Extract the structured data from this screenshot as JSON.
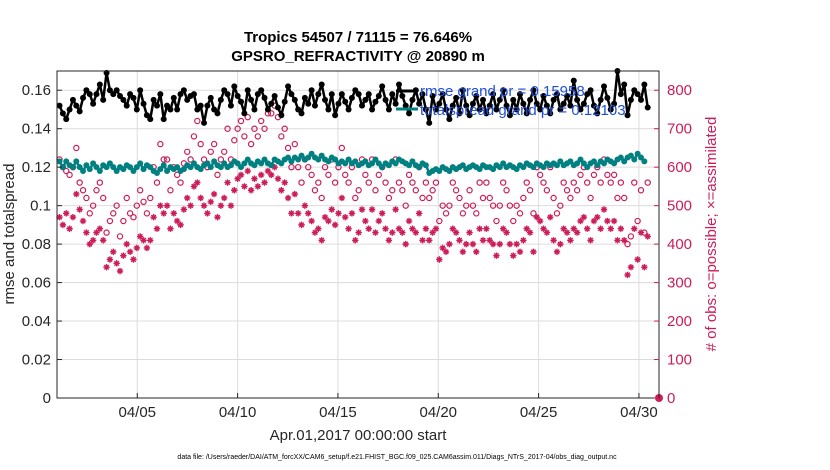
{
  "chart_data": {
    "type": "scatter",
    "title": "Tropics 54507 / 71115 = 76.646%",
    "subtitle": "GPSRO_REFRACTIVITY @ 20890 m",
    "xlabel": "Apr.01,2017 00:00:00 start",
    "ylabel_left": "rmse and totalspread",
    "ylabel_right": "# of obs: o=possible; ×=assimilated",
    "xlim": [
      1,
      31
    ],
    "ylim_left": [
      0,
      0.17
    ],
    "ylim_right": [
      0,
      850
    ],
    "x_ticks": [
      5,
      10,
      15,
      20,
      25,
      30
    ],
    "x_tick_labels": [
      "04/05",
      "04/10",
      "04/15",
      "04/20",
      "04/25",
      "04/30"
    ],
    "y_left_ticks": [
      0,
      0.02,
      0.04,
      0.06,
      0.08,
      0.1,
      0.12,
      0.14,
      0.16
    ],
    "y_left_tick_labels": [
      "0",
      "0.02",
      "0.04",
      "0.06",
      "0.08",
      "0.1",
      "0.12",
      "0.14",
      "0.16"
    ],
    "y_right_ticks": [
      0,
      100,
      200,
      300,
      400,
      500,
      600,
      700,
      800
    ],
    "y_right_tick_labels": [
      "0",
      "100",
      "200",
      "300",
      "400",
      "500",
      "600",
      "700",
      "800"
    ],
    "legend": [
      {
        "label": "rmse grand pr = 0.15958",
        "color": "#000000"
      },
      {
        "label": "totalspread grand pr = 0.12103",
        "color": "#008080"
      }
    ],
    "series": [
      {
        "name": "rmse",
        "axis": "left",
        "color": "#000000",
        "style": "line-marker",
        "values": [
          0.152,
          0.148,
          0.145,
          0.15,
          0.155,
          0.152,
          0.149,
          0.156,
          0.16,
          0.158,
          0.153,
          0.158,
          0.163,
          0.155,
          0.169,
          0.16,
          0.158,
          0.16,
          0.157,
          0.155,
          0.152,
          0.158,
          0.156,
          0.15,
          0.16,
          0.153,
          0.147,
          0.145,
          0.155,
          0.152,
          0.158,
          0.145,
          0.152,
          0.15,
          0.156,
          0.15,
          0.158,
          0.16,
          0.155,
          0.157,
          0.158,
          0.15,
          0.152,
          0.143,
          0.152,
          0.156,
          0.15,
          0.148,
          0.155,
          0.16,
          0.158,
          0.152,
          0.162,
          0.157,
          0.154,
          0.148,
          0.16,
          0.155,
          0.15,
          0.158,
          0.16,
          0.156,
          0.15,
          0.153,
          0.157,
          0.151,
          0.147,
          0.154,
          0.162,
          0.158,
          0.155,
          0.15,
          0.148,
          0.156,
          0.153,
          0.16,
          0.152,
          0.158,
          0.163,
          0.155,
          0.15,
          0.158,
          0.147,
          0.153,
          0.158,
          0.154,
          0.15,
          0.156,
          0.16,
          0.158,
          0.152,
          0.155,
          0.158,
          0.15,
          0.154,
          0.157,
          0.162,
          0.155,
          0.15,
          0.158,
          0.153,
          0.163,
          0.157,
          0.152,
          0.148,
          0.155,
          0.16,
          0.153,
          0.158,
          0.15,
          0.143,
          0.157,
          0.15,
          0.153,
          0.158,
          0.15,
          0.145,
          0.152,
          0.156,
          0.148,
          0.16,
          0.152,
          0.147,
          0.153,
          0.157,
          0.15,
          0.155,
          0.148,
          0.152,
          0.158,
          0.15,
          0.155,
          0.16,
          0.152,
          0.147,
          0.155,
          0.15,
          0.158,
          0.153,
          0.148,
          0.155,
          0.16,
          0.153,
          0.15,
          0.157,
          0.152,
          0.148,
          0.155,
          0.158,
          0.15,
          0.153,
          0.157,
          0.152,
          0.165,
          0.155,
          0.15,
          0.153,
          0.158,
          0.16,
          0.152,
          0.148,
          0.155,
          0.162,
          0.156,
          0.15,
          0.153,
          0.17,
          0.158,
          0.163,
          0.147,
          0.155,
          0.16,
          0.158,
          0.155,
          0.163,
          0.151
        ]
      },
      {
        "name": "totalspread",
        "axis": "left",
        "color": "#008080",
        "style": "line-marker",
        "values": [
          0.123,
          0.12,
          0.123,
          0.121,
          0.12,
          0.123,
          0.12,
          0.118,
          0.121,
          0.119,
          0.122,
          0.12,
          0.118,
          0.121,
          0.12,
          0.122,
          0.12,
          0.118,
          0.12,
          0.119,
          0.121,
          0.12,
          0.118,
          0.12,
          0.122,
          0.119,
          0.121,
          0.12,
          0.118,
          0.117,
          0.119,
          0.121,
          0.118,
          0.12,
          0.119,
          0.12,
          0.118,
          0.119,
          0.121,
          0.12,
          0.122,
          0.12,
          0.119,
          0.121,
          0.122,
          0.12,
          0.123,
          0.121,
          0.12,
          0.122,
          0.12,
          0.121,
          0.123,
          0.122,
          0.12,
          0.122,
          0.124,
          0.122,
          0.121,
          0.123,
          0.122,
          0.124,
          0.122,
          0.121,
          0.124,
          0.123,
          0.122,
          0.124,
          0.125,
          0.123,
          0.125,
          0.124,
          0.126,
          0.124,
          0.125,
          0.127,
          0.125,
          0.124,
          0.126,
          0.124,
          0.123,
          0.125,
          0.124,
          0.122,
          0.123,
          0.122,
          0.124,
          0.122,
          0.123,
          0.121,
          0.122,
          0.123,
          0.121,
          0.122,
          0.124,
          0.122,
          0.12,
          0.122,
          0.121,
          0.123,
          0.122,
          0.124,
          0.123,
          0.122,
          0.121,
          0.123,
          0.121,
          0.12,
          0.122,
          0.121,
          0.117,
          0.118,
          0.119,
          0.118,
          0.12,
          0.119,
          0.118,
          0.12,
          0.119,
          0.12,
          0.121,
          0.119,
          0.12,
          0.121,
          0.12,
          0.119,
          0.121,
          0.12,
          0.12,
          0.119,
          0.121,
          0.12,
          0.122,
          0.12,
          0.121,
          0.12,
          0.119,
          0.121,
          0.12,
          0.122,
          0.121,
          0.12,
          0.122,
          0.121,
          0.12,
          0.122,
          0.121,
          0.122,
          0.121,
          0.123,
          0.121,
          0.122,
          0.123,
          0.121,
          0.122,
          0.124,
          0.122,
          0.12,
          0.122,
          0.123,
          0.121,
          0.123,
          0.122,
          0.124,
          0.123,
          0.122,
          0.124,
          0.125,
          0.123,
          0.125,
          0.126,
          0.124,
          0.127,
          0.125,
          0.123
        ]
      },
      {
        "name": "obs possible",
        "axis": "right",
        "color": "#cc1d5a",
        "style": "marker-circle",
        "values": [
          620,
          600,
          590,
          580,
          600,
          650,
          560,
          540,
          520,
          480,
          500,
          540,
          560,
          520,
          430,
          460,
          480,
          500,
          420,
          460,
          520,
          480,
          470,
          500,
          540,
          510,
          480,
          520,
          600,
          560,
          660,
          620,
          620,
          540,
          600,
          580,
          560,
          610,
          640,
          620,
          680,
          720,
          660,
          620,
          600,
          640,
          660,
          580,
          620,
          640,
          700,
          620,
          670,
          700,
          720,
          680,
          730,
          660,
          700,
          680,
          720,
          700,
          740,
          740,
          760,
          730,
          680,
          700,
          650,
          600,
          660,
          600,
          560,
          620,
          600,
          580,
          540,
          560,
          520,
          600,
          580,
          620,
          560,
          600,
          650,
          580,
          560,
          600,
          520,
          540,
          620,
          580,
          560,
          620,
          540,
          580,
          600,
          560,
          520,
          540,
          620,
          560,
          540,
          500,
          580,
          560,
          540,
          600,
          520,
          560,
          520,
          540,
          560,
          460,
          500,
          480,
          500,
          560,
          540,
          520,
          480,
          500,
          540,
          500,
          480,
          560,
          520,
          560,
          520,
          500,
          460,
          500,
          560,
          540,
          500,
          460,
          500,
          480,
          520,
          560,
          540,
          480,
          600,
          580,
          560,
          540,
          600,
          520,
          480,
          500,
          560,
          540,
          520,
          560,
          540,
          580,
          600,
          560,
          520,
          580,
          600,
          560,
          620,
          580,
          560,
          580,
          520,
          560,
          520,
          400,
          420,
          560,
          460,
          540,
          430,
          560
        ]
      },
      {
        "name": "obs assimilated",
        "axis": "right",
        "color": "#cc1d5a",
        "style": "marker-asterisk",
        "values": [
          470,
          450,
          480,
          440,
          470,
          530,
          490,
          460,
          430,
          400,
          410,
          430,
          440,
          410,
          340,
          360,
          380,
          350,
          330,
          370,
          400,
          380,
          360,
          390,
          420,
          410,
          390,
          410,
          470,
          440,
          500,
          480,
          500,
          440,
          480,
          460,
          450,
          490,
          520,
          500,
          550,
          560,
          520,
          500,
          480,
          510,
          530,
          470,
          500,
          520,
          560,
          500,
          540,
          570,
          580,
          550,
          590,
          540,
          570,
          550,
          580,
          560,
          590,
          580,
          600,
          570,
          540,
          560,
          520,
          480,
          530,
          480,
          450,
          500,
          480,
          460,
          430,
          440,
          410,
          470,
          460,
          490,
          450,
          480,
          520,
          470,
          440,
          480,
          410,
          430,
          490,
          460,
          440,
          490,
          430,
          460,
          480,
          440,
          410,
          430,
          490,
          440,
          430,
          400,
          460,
          440,
          430,
          480,
          410,
          440,
          410,
          430,
          440,
          360,
          390,
          380,
          400,
          440,
          430,
          410,
          380,
          400,
          430,
          400,
          380,
          440,
          410,
          440,
          410,
          400,
          370,
          400,
          440,
          430,
          400,
          370,
          400,
          380,
          410,
          440,
          430,
          380,
          470,
          460,
          440,
          430,
          470,
          410,
          380,
          400,
          440,
          430,
          410,
          440,
          430,
          460,
          470,
          440,
          410,
          460,
          470,
          440,
          490,
          460,
          440,
          460,
          410,
          440,
          410,
          320,
          340,
          440,
          360,
          430,
          340,
          420
        ]
      }
    ],
    "x_start": 1.125,
    "x_step": 0.1675
  },
  "footer": "data file: /Users/raeder/DAI/ATM_forcXX/CAM6_setup/f.e21.FHIST_BGC.f09_025.CAM6assim.011/Diags_NTrS_2017-04/obs_diag_output.nc"
}
